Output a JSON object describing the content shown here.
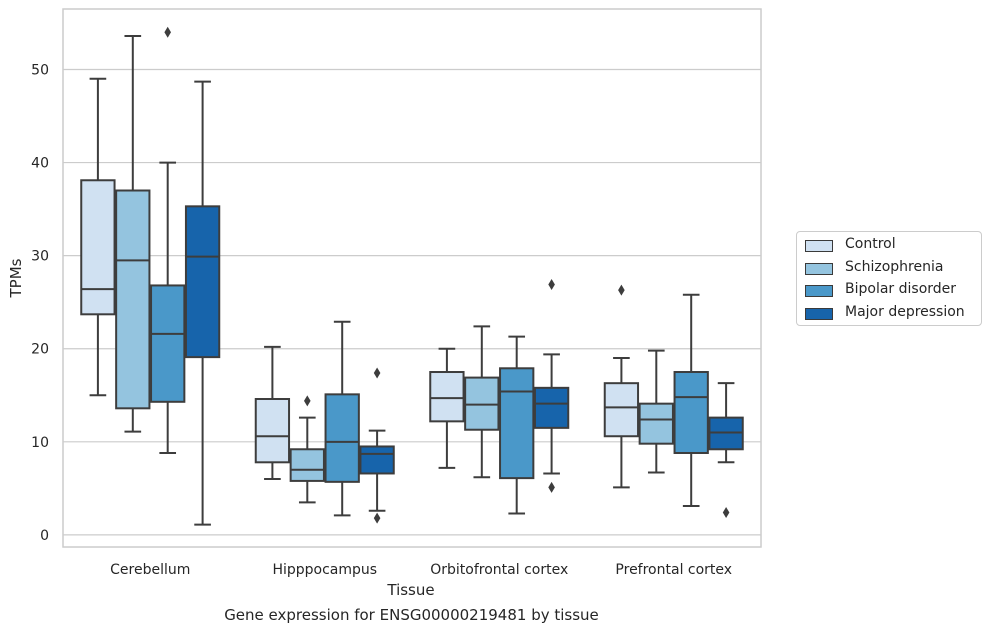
{
  "chart_data": {
    "type": "box",
    "title": "Gene expression for ENSG00000219481 by tissue",
    "xlabel": "Tissue",
    "ylabel": "TPMs",
    "ylim": [
      -1.3,
      56.5
    ],
    "yticks": [
      0,
      10,
      20,
      30,
      40,
      50
    ],
    "grid": "horizontal",
    "legend_position": "right",
    "categories": [
      "Cerebellum",
      "Hipppocampus",
      "Orbitofrontal cortex",
      "Prefrontal cortex"
    ],
    "series": [
      {
        "name": "Control",
        "color": "#d0e1f2",
        "boxes": [
          {
            "whislo": 15.0,
            "q1": 23.7,
            "med": 26.4,
            "q3": 38.1,
            "whishi": 49.0,
            "fliers": []
          },
          {
            "whislo": 6.0,
            "q1": 7.8,
            "med": 10.6,
            "q3": 14.6,
            "whishi": 20.2,
            "fliers": []
          },
          {
            "whislo": 7.2,
            "q1": 12.2,
            "med": 14.7,
            "q3": 17.5,
            "whishi": 20.0,
            "fliers": []
          },
          {
            "whislo": 5.1,
            "q1": 10.6,
            "med": 13.7,
            "q3": 16.3,
            "whishi": 19.0,
            "fliers": [
              26.3
            ]
          }
        ]
      },
      {
        "name": "Schizophrenia",
        "color": "#94c4df",
        "boxes": [
          {
            "whislo": 11.1,
            "q1": 13.6,
            "med": 29.5,
            "q3": 37.0,
            "whishi": 53.6,
            "fliers": []
          },
          {
            "whislo": 3.5,
            "q1": 5.8,
            "med": 7.0,
            "q3": 9.2,
            "whishi": 12.6,
            "fliers": [
              14.4
            ]
          },
          {
            "whislo": 6.2,
            "q1": 11.3,
            "med": 14.0,
            "q3": 16.9,
            "whishi": 22.4,
            "fliers": []
          },
          {
            "whislo": 6.7,
            "q1": 9.8,
            "med": 12.4,
            "q3": 14.1,
            "whishi": 19.8,
            "fliers": []
          }
        ]
      },
      {
        "name": "Bipolar disorder",
        "color": "#4a98c9",
        "boxes": [
          {
            "whislo": 8.8,
            "q1": 14.3,
            "med": 21.6,
            "q3": 26.8,
            "whishi": 40.0,
            "fliers": [
              54.0
            ]
          },
          {
            "whislo": 2.1,
            "q1": 5.7,
            "med": 10.0,
            "q3": 15.1,
            "whishi": 22.9,
            "fliers": []
          },
          {
            "whislo": 2.3,
            "q1": 6.1,
            "med": 15.4,
            "q3": 17.9,
            "whishi": 21.3,
            "fliers": []
          },
          {
            "whislo": 3.1,
            "q1": 8.8,
            "med": 14.8,
            "q3": 17.5,
            "whishi": 25.8,
            "fliers": []
          }
        ]
      },
      {
        "name": "Major depression",
        "color": "#1764ab",
        "boxes": [
          {
            "whislo": 1.1,
            "q1": 19.1,
            "med": 29.9,
            "q3": 35.3,
            "whishi": 48.7,
            "fliers": []
          },
          {
            "whislo": 2.6,
            "q1": 6.6,
            "med": 8.7,
            "q3": 9.5,
            "whishi": 11.2,
            "fliers": [
              1.8,
              17.4
            ]
          },
          {
            "whislo": 6.6,
            "q1": 11.5,
            "med": 14.1,
            "q3": 15.8,
            "whishi": 19.4,
            "fliers": [
              5.1,
              26.9
            ]
          },
          {
            "whislo": 7.8,
            "q1": 9.2,
            "med": 11.0,
            "q3": 12.6,
            "whishi": 16.3,
            "fliers": [
              2.4
            ]
          }
        ]
      }
    ]
  }
}
